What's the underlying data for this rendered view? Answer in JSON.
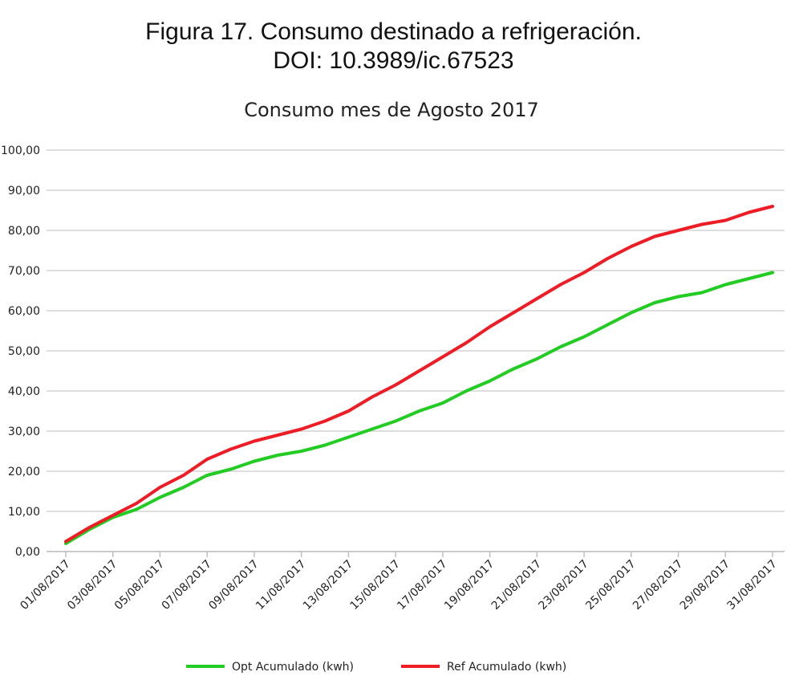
{
  "figure": {
    "caption_line1": "Figura 17. Consumo destinado a refrigeración.",
    "caption_line2": "DOI: 10.3989/ic.67523"
  },
  "chart_data": {
    "type": "line",
    "title": "Consumo mes de Agosto 2017",
    "xlabel": "",
    "ylabel": "",
    "ylim": [
      0,
      100
    ],
    "yticks": [
      "0,00",
      "10,00",
      "20,00",
      "30,00",
      "40,00",
      "50,00",
      "60,00",
      "70,00",
      "80,00",
      "90,00",
      "100,00"
    ],
    "x": [
      "01/08/2017",
      "02/08/2017",
      "03/08/2017",
      "04/08/2017",
      "05/08/2017",
      "06/08/2017",
      "07/08/2017",
      "08/08/2017",
      "09/08/2017",
      "10/08/2017",
      "11/08/2017",
      "12/08/2017",
      "13/08/2017",
      "14/08/2017",
      "15/08/2017",
      "16/08/2017",
      "17/08/2017",
      "18/08/2017",
      "19/08/2017",
      "20/08/2017",
      "21/08/2017",
      "22/08/2017",
      "23/08/2017",
      "24/08/2017",
      "25/08/2017",
      "26/08/2017",
      "27/08/2017",
      "28/08/2017",
      "29/08/2017",
      "30/08/2017",
      "31/08/2017"
    ],
    "xtick_labels": [
      "01/08/2017",
      "03/08/2017",
      "05/08/2017",
      "07/08/2017",
      "09/08/2017",
      "11/08/2017",
      "13/08/2017",
      "15/08/2017",
      "17/08/2017",
      "19/08/2017",
      "21/08/2017",
      "23/08/2017",
      "25/08/2017",
      "27/08/2017",
      "29/08/2017",
      "31/08/2017"
    ],
    "series": [
      {
        "name": "Opt Acumulado (kwh)",
        "color": "#22cc22",
        "values": [
          2.0,
          5.5,
          8.5,
          10.5,
          13.5,
          16.0,
          19.0,
          20.5,
          22.5,
          24.0,
          25.0,
          26.5,
          28.5,
          30.5,
          32.5,
          35.0,
          37.0,
          40.0,
          42.5,
          45.5,
          48.0,
          51.0,
          53.5,
          56.5,
          59.5,
          62.0,
          63.5,
          64.5,
          66.5,
          68.0,
          69.5
        ]
      },
      {
        "name": "Ref Acumulado (kwh)",
        "color": "#ee1c25",
        "values": [
          2.5,
          6.0,
          9.0,
          12.0,
          16.0,
          19.0,
          23.0,
          25.5,
          27.5,
          29.0,
          30.5,
          32.5,
          35.0,
          38.5,
          41.5,
          45.0,
          48.5,
          52.0,
          56.0,
          59.5,
          63.0,
          66.5,
          69.5,
          73.0,
          76.0,
          78.5,
          80.0,
          81.5,
          82.5,
          84.5,
          86.0
        ]
      }
    ],
    "grid": true,
    "legend_position": "bottom"
  }
}
